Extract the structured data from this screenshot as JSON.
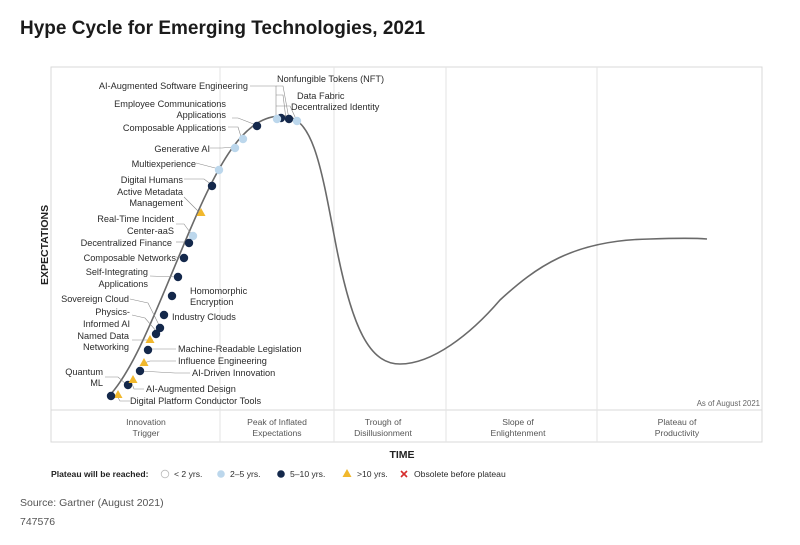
{
  "chart_data": {
    "type": "scatter",
    "title": "Hype Cycle for Emerging Technologies, 2021",
    "ylabel": "EXPECTATIONS",
    "xlabel": "TIME",
    "as_of": "As of August 2021",
    "phases": [
      {
        "line1": "Innovation",
        "line2": "Trigger"
      },
      {
        "line1": "Peak of Inflated",
        "line2": "Expectations"
      },
      {
        "line1": "Trough of",
        "line2": "Disillusionment"
      },
      {
        "line1": "Slope of",
        "line2": "Enlightenment"
      },
      {
        "line1": "Plateau of",
        "line2": "Productivity"
      }
    ],
    "legend": {
      "title": "Plateau will be reached:",
      "items": [
        {
          "key": "lt2",
          "label": "< 2 yrs.",
          "color": "#ffffff",
          "shape": "circle"
        },
        {
          "key": "2to5",
          "label": "2–5 yrs.",
          "color": "#bcd7ec",
          "shape": "circle"
        },
        {
          "key": "5to10",
          "label": "5–10 yrs.",
          "color": "#14284b",
          "shape": "circle"
        },
        {
          "key": "gt10",
          "label": ">10 yrs.",
          "color": "#f1b82d",
          "shape": "triangle"
        },
        {
          "key": "obsolete",
          "label": "Obsolete before plateau",
          "color": "#d62e2e",
          "shape": "x"
        }
      ]
    },
    "technologies": [
      {
        "name": "Nonfungible Tokens (NFT)",
        "position": 0.298,
        "plateau": "5to10"
      },
      {
        "name": "Data Fabric",
        "position": 0.294,
        "plateau": "5to10"
      },
      {
        "name": "Decentralized Identity",
        "position": 0.306,
        "plateau": "2to5"
      },
      {
        "name": "AI-Augmented Software Engineering",
        "position": 0.275,
        "plateau": "2to5"
      },
      {
        "name": "Employee Communications Applications",
        "position": 0.248,
        "plateau": "5to10"
      },
      {
        "name": "Composable Applications",
        "position": 0.228,
        "plateau": "2to5"
      },
      {
        "name": "Generative AI",
        "position": 0.222,
        "plateau": "2to5"
      },
      {
        "name": "Multiexperience",
        "position": 0.205,
        "plateau": "2to5"
      },
      {
        "name": "Digital Humans",
        "position": 0.198,
        "plateau": "5to10"
      },
      {
        "name": "Active Metadata Management",
        "position": 0.188,
        "plateau": "gt10"
      },
      {
        "name": "Real-Time Incident Center-aaS",
        "position": 0.178,
        "plateau": "2to5"
      },
      {
        "name": "Decentralized Finance",
        "position": 0.175,
        "plateau": "5to10"
      },
      {
        "name": "Composable Networks",
        "position": 0.17,
        "plateau": "5to10"
      },
      {
        "name": "Self-Integrating Applications",
        "position": 0.164,
        "plateau": "5to10"
      },
      {
        "name": "Homomorphic Encryption",
        "position": 0.158,
        "plateau": "5to10"
      },
      {
        "name": "Industry Clouds",
        "position": 0.151,
        "plateau": "5to10"
      },
      {
        "name": "Sovereign Cloud",
        "position": 0.143,
        "plateau": "5to10"
      },
      {
        "name": "Physics-Informed AI",
        "position": 0.14,
        "plateau": "5to10"
      },
      {
        "name": "Named Data Networking",
        "position": 0.136,
        "plateau": "gt10"
      },
      {
        "name": "Machine-Readable Legislation",
        "position": 0.13,
        "plateau": "5to10"
      },
      {
        "name": "Influence Engineering",
        "position": 0.126,
        "plateau": "gt10"
      },
      {
        "name": "AI-Driven Innovation",
        "position": 0.114,
        "plateau": "5to10"
      },
      {
        "name": "Quantum ML",
        "position": 0.1,
        "plateau": "5to10"
      },
      {
        "name": "AI-Augmented Design",
        "position": 0.092,
        "plateau": "gt10"
      },
      {
        "name": "Digital Platform Conductor Tools",
        "position": 0.083,
        "plateau": "gt10"
      }
    ]
  },
  "footer": {
    "source": "Source: Gartner (August 2021)",
    "id": "747576"
  }
}
